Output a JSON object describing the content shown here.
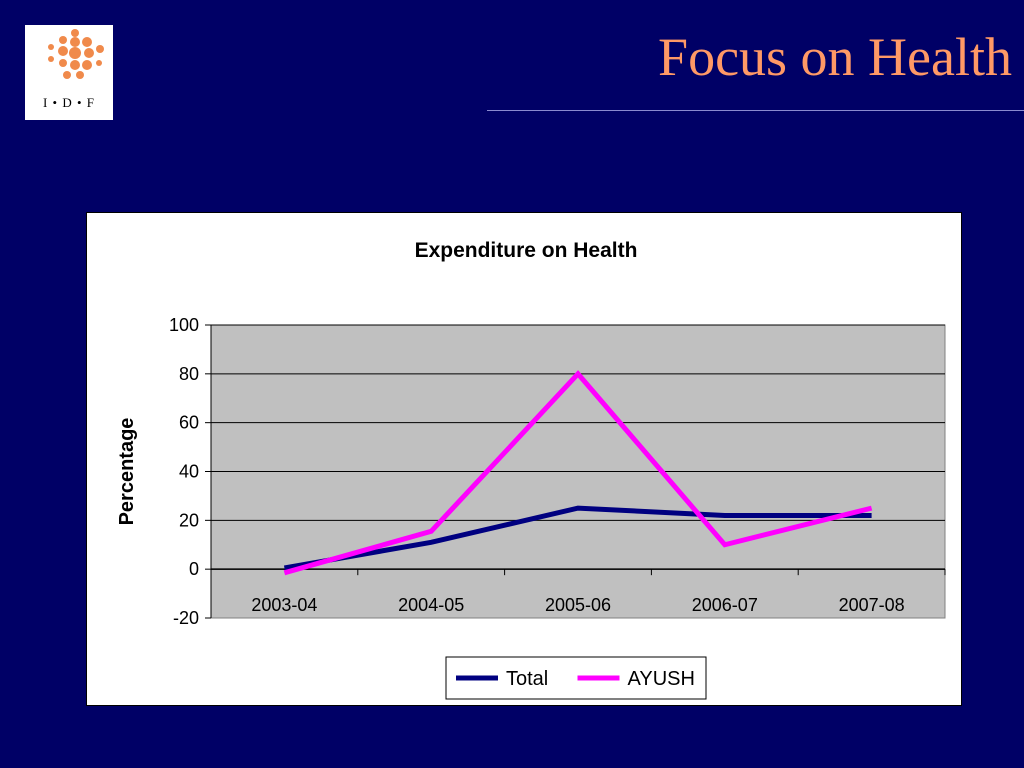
{
  "slide": {
    "title": "Focus on Health",
    "logo_text": "I • D • F"
  },
  "colors": {
    "background": "#000066",
    "title": "#ff9966",
    "plot_area": "#c0c0c0",
    "total": "#000080",
    "ayush": "#ff00ff"
  },
  "chart_data": {
    "type": "line",
    "title": "Expenditure on Health",
    "xlabel": "",
    "ylabel": "Percentage",
    "categories": [
      "2003-04",
      "2004-05",
      "2005-06",
      "2006-07",
      "2007-08"
    ],
    "series": [
      {
        "name": "Total",
        "values": [
          0.5,
          11,
          25,
          22,
          22
        ]
      },
      {
        "name": "AYUSH",
        "values": [
          -1.5,
          15.5,
          80,
          10,
          25
        ]
      }
    ],
    "ylim": [
      -20,
      100
    ],
    "yticks": [
      -20,
      0,
      20,
      40,
      60,
      80,
      100
    ],
    "grid": true,
    "legend_position": "bottom"
  }
}
